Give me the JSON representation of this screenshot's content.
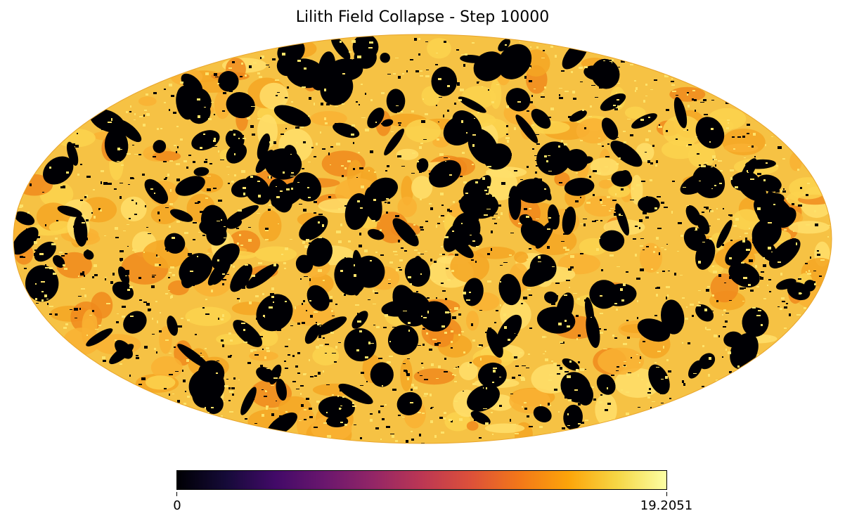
{
  "chart_data": {
    "type": "heatmap",
    "projection": "mollweide",
    "title": "Lilith Field Collapse - Step 10000",
    "colormap": "inferno",
    "colorbar": {
      "min": 0,
      "max": 19.2051,
      "orientation": "horizontal",
      "position": "bottom"
    },
    "tick_labels": [
      "0",
      "19.2051"
    ],
    "colors": {
      "background": "#ffffff",
      "low": "#000004",
      "high": "#fcffa4"
    }
  }
}
